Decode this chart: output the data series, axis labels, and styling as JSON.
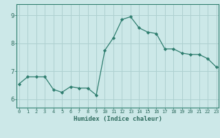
{
  "x": [
    0,
    1,
    2,
    3,
    4,
    5,
    6,
    7,
    8,
    9,
    10,
    11,
    12,
    13,
    14,
    15,
    16,
    17,
    18,
    19,
    20,
    21,
    22,
    23
  ],
  "y": [
    6.55,
    6.8,
    6.8,
    6.8,
    6.35,
    6.25,
    6.45,
    6.4,
    6.4,
    6.15,
    7.75,
    8.2,
    8.85,
    8.95,
    8.55,
    8.4,
    8.35,
    7.8,
    7.8,
    7.65,
    7.6,
    7.6,
    7.45,
    7.15
  ],
  "line_color": "#2e7d6e",
  "marker": "D",
  "marker_size": 2.2,
  "bg_color": "#cce8e8",
  "grid_color": "#aed0d0",
  "xlabel": "Humidex (Indice chaleur)",
  "ylim": [
    5.7,
    9.4
  ],
  "yticks": [
    6,
    7,
    8,
    9
  ],
  "xticks": [
    0,
    1,
    2,
    3,
    4,
    5,
    6,
    7,
    8,
    9,
    10,
    11,
    12,
    13,
    14,
    15,
    16,
    17,
    18,
    19,
    20,
    21,
    22,
    23
  ],
  "font_color": "#2e6b5e",
  "border_color": "#2e7d6e"
}
